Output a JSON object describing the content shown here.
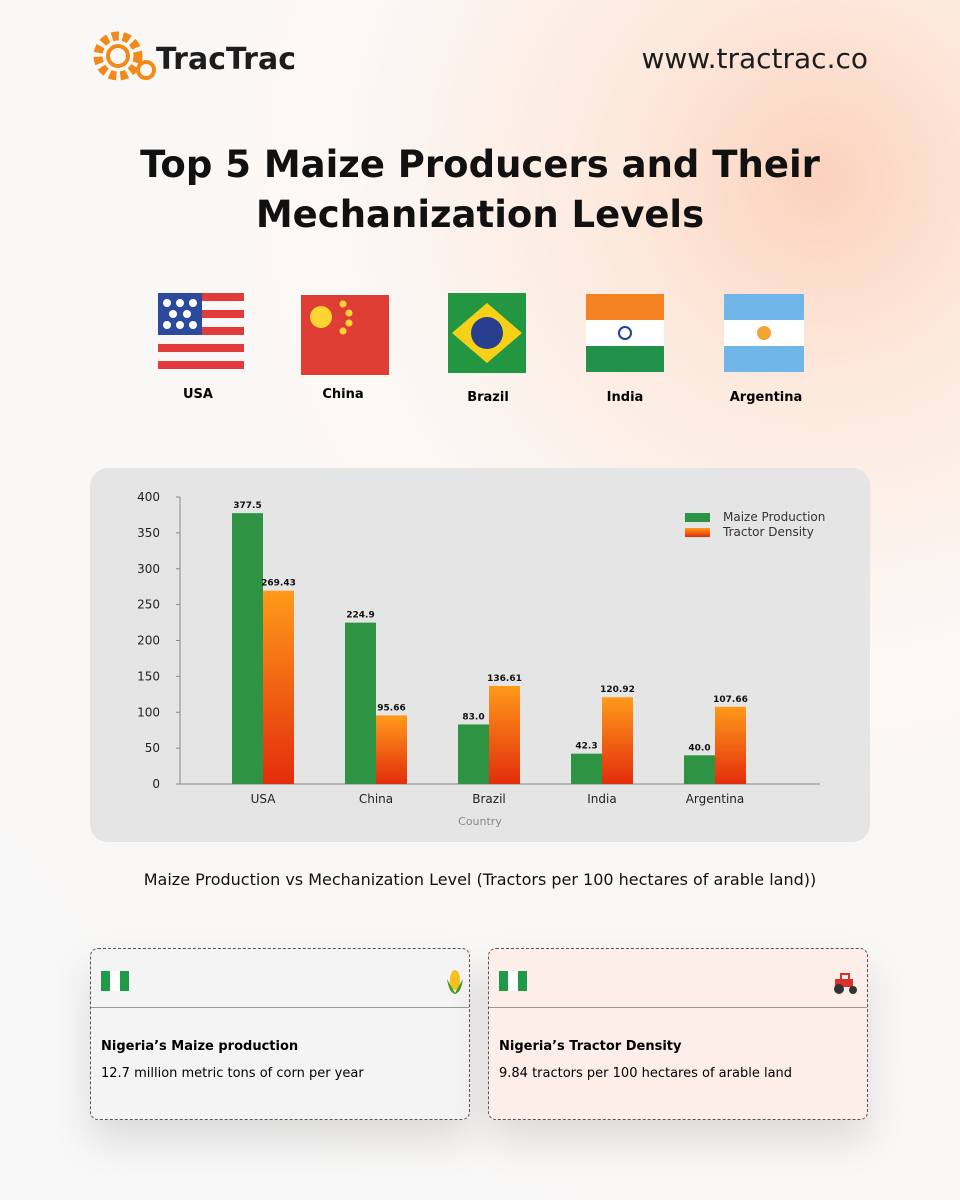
{
  "header": {
    "logo": "TracTrac",
    "url": "www.tractrac.co"
  },
  "title": "Top 5 Maize Producers and Their Mechanization Levels",
  "flags": [
    "USA",
    "China",
    "Brazil",
    "India",
    "Argentina"
  ],
  "chart_data": {
    "type": "bar",
    "categories": [
      "USA",
      "China",
      "Brazil",
      "India",
      "Argentina"
    ],
    "series": [
      {
        "name": "Maize Production",
        "color": "#2e9444",
        "values": [
          377.5,
          224.9,
          83.0,
          42.3,
          40.0
        ],
        "value_labels": [
          "377.5",
          "224.9",
          "83.0",
          "42.3",
          "40.0"
        ]
      },
      {
        "name": "Tractor Density",
        "color": "#f57c12",
        "values": [
          269.43,
          95.66,
          136.61,
          120.92,
          107.66
        ],
        "value_labels": [
          "269.43",
          "95.66",
          "136.61",
          "120.92",
          "107.66"
        ]
      }
    ],
    "xlabel": "Country",
    "ylim": [
      0,
      400
    ],
    "yticks": [
      0,
      50,
      100,
      150,
      200,
      250,
      300,
      350,
      400
    ],
    "legend": "upper right"
  },
  "caption": "Maize Production vs Mechanization Level (Tractors per 100 hectares of arable land))",
  "cards": [
    {
      "title": "Nigeria’s Maize production",
      "text": "12.7 million metric tons of corn per year"
    },
    {
      "title": "Nigeria’s Tractor Density",
      "text": "9.84 tractors per 100 hectares of arable land"
    }
  ]
}
